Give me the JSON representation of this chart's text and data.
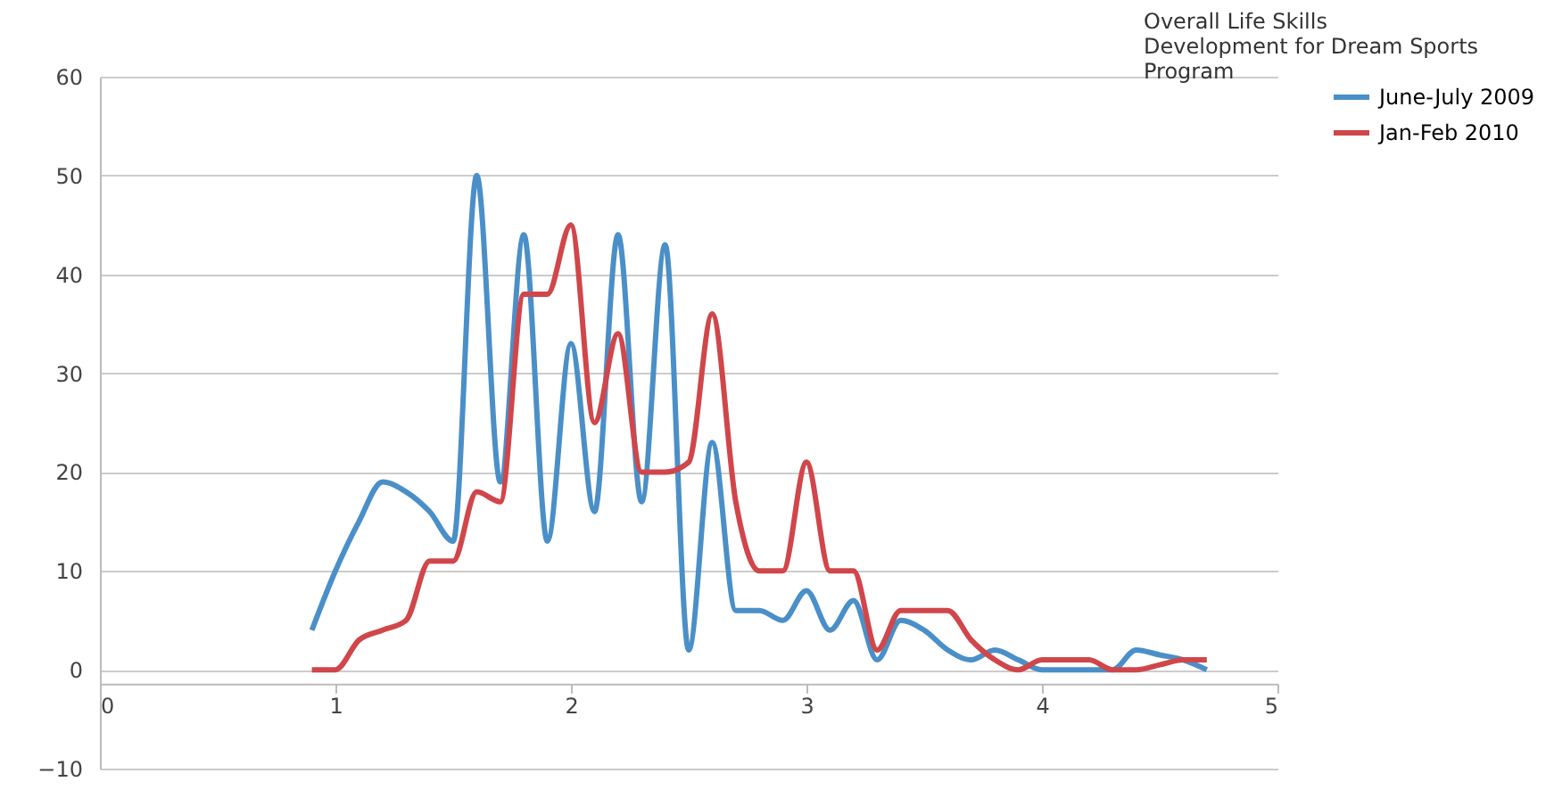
{
  "chart_data": {
    "type": "line",
    "title": "Overall Life Skills Development for Dream Sports Program",
    "x": [
      0.9,
      1.0,
      1.1,
      1.2,
      1.3,
      1.4,
      1.5,
      1.6,
      1.7,
      1.8,
      1.9,
      2.0,
      2.1,
      2.2,
      2.3,
      2.4,
      2.5,
      2.6,
      2.7,
      2.8,
      2.9,
      3.0,
      3.1,
      3.2,
      3.3,
      3.4,
      3.5,
      3.6,
      3.7,
      3.8,
      3.9,
      4.0,
      4.1,
      4.2,
      4.3,
      4.4,
      4.5,
      4.6,
      4.7
    ],
    "series": [
      {
        "name": "June-July 2009",
        "color": "#4a8fc8",
        "values": [
          4,
          10,
          15,
          19,
          18,
          16,
          13,
          50,
          19,
          44,
          13,
          33,
          16,
          44,
          17,
          43,
          2,
          23,
          6,
          6,
          5,
          8,
          4,
          7,
          1,
          5,
          4,
          2,
          1,
          2,
          1,
          0,
          0,
          0,
          0,
          2,
          1.5,
          1,
          0
        ]
      },
      {
        "name": "Jan-Feb 2010",
        "color": "#d0464a",
        "values": [
          0,
          0,
          3,
          4,
          5,
          11,
          11,
          18,
          17,
          38,
          38,
          45,
          25,
          34,
          20,
          20,
          21,
          36,
          17,
          10,
          10,
          21,
          10,
          10,
          2,
          6,
          6,
          6,
          3,
          1,
          0,
          1,
          1,
          1,
          0,
          0,
          0.5,
          1,
          1
        ]
      }
    ],
    "xlim": [
      0,
      5
    ],
    "xticks": [
      0,
      1,
      2,
      3,
      4,
      5
    ],
    "ylim": [
      -10,
      60
    ],
    "yticks": [
      -10,
      0,
      10,
      20,
      30,
      40,
      50,
      60
    ],
    "grid": "y",
    "legend": "right",
    "marker": "none",
    "line_style": "solid"
  }
}
